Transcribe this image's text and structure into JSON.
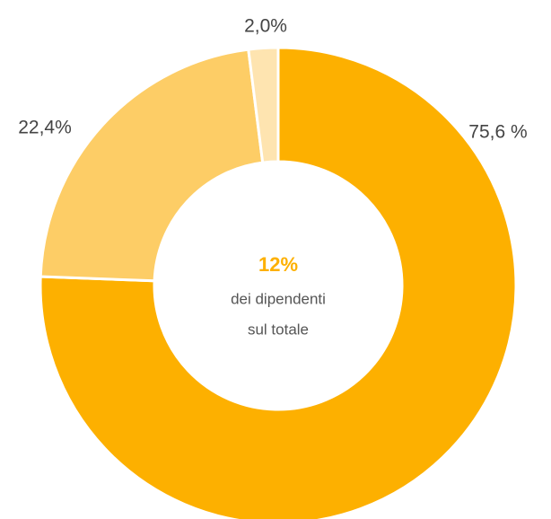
{
  "chart_data": {
    "type": "donut",
    "values": [
      75.6,
      22.4,
      2.0
    ],
    "value_labels": [
      "75,6 %",
      "22,4%",
      "2,0%"
    ],
    "colors": [
      "#fdb000",
      "#fdcd66",
      "#fee4b0"
    ],
    "center_title": "12%",
    "center_text": [
      "dei dipendenti",
      "sul totale"
    ]
  }
}
